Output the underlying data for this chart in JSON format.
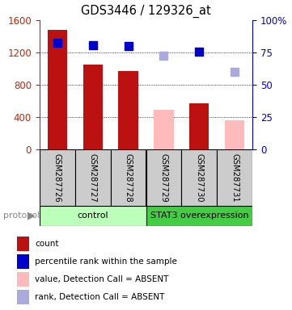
{
  "title": "GDS3446 / 129326_at",
  "samples": [
    "GSM287726",
    "GSM287727",
    "GSM287728",
    "GSM287729",
    "GSM287730",
    "GSM287731"
  ],
  "bar_values": [
    1480,
    1050,
    970,
    null,
    570,
    null
  ],
  "absent_bar_values": [
    null,
    null,
    null,
    490,
    null,
    360
  ],
  "blue_sq_values": [
    1320,
    1290,
    1280,
    null,
    1210,
    null
  ],
  "lblue_sq_values": [
    null,
    null,
    null,
    1160,
    null,
    960
  ],
  "bar_color_present": "#bb1111",
  "bar_color_absent": "#ffbbbb",
  "blue_color": "#0000cc",
  "lblue_color": "#aaaadd",
  "ylim_left": [
    0,
    1600
  ],
  "yticks_left": [
    0,
    400,
    800,
    1200,
    1600
  ],
  "yticks_right": [
    0,
    25,
    50,
    75,
    100
  ],
  "left_tick_color": "#cc2200",
  "right_tick_color": "#0000cc",
  "bar_width": 0.55,
  "sq_size": 55,
  "protocol_groups": [
    {
      "label": "control",
      "start": 0,
      "end": 3,
      "color": "#bbffbb",
      "text_color": "#000000"
    },
    {
      "label": "STAT3 overexpression",
      "start": 3,
      "end": 6,
      "color": "#44cc44",
      "text_color": "#000000"
    }
  ],
  "legend_items": [
    {
      "label": "count",
      "color": "#bb1111"
    },
    {
      "label": "percentile rank within the sample",
      "color": "#0000cc"
    },
    {
      "label": "value, Detection Call = ABSENT",
      "color": "#ffbbbb"
    },
    {
      "label": "rank, Detection Call = ABSENT",
      "color": "#aaaadd"
    }
  ],
  "bg_color": "#ffffff",
  "plot_bg": "#ffffff",
  "sample_box_color": "#cccccc",
  "grid_color": "#000000",
  "grid_lw": 0.6,
  "grid_ls": "dotted"
}
